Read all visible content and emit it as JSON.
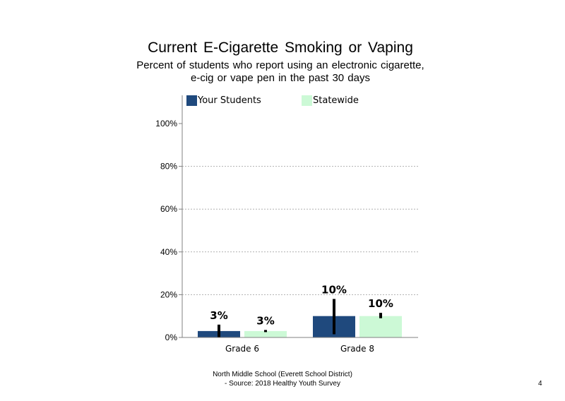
{
  "chart_data": {
    "type": "bar",
    "title": "Current  E-Cigarette  Smoking  or Vaping",
    "subtitle": [
      "Percent of students who report using an electronic cigarette,",
      "e-cig or vape pen in the past 30 days"
    ],
    "categories": [
      "Grade 6",
      "Grade 8"
    ],
    "series": [
      {
        "name": "Your Students",
        "color": "#1f497d",
        "values": [
          3,
          10
        ],
        "labels": [
          "3%",
          "10%"
        ],
        "error_low": [
          0,
          1.5
        ],
        "error_high": [
          6,
          18
        ]
      },
      {
        "name": "Statewide",
        "color": "#ccf9d6",
        "values": [
          3,
          10
        ],
        "labels": [
          "3%",
          "10%"
        ],
        "error_low": [
          2.5,
          9
        ],
        "error_high": [
          3.5,
          11.5
        ]
      }
    ],
    "ylim": [
      0,
      110
    ],
    "yticks": [
      0,
      20,
      40,
      60,
      80,
      100
    ],
    "ytick_labels": [
      "0%",
      "20%",
      "40%",
      "60%",
      "80%",
      "100%"
    ],
    "grid": true,
    "legend": "top"
  },
  "footer": {
    "line1": "North Middle School (Everett School District)",
    "line2": "- Source: 2018 Healthy  Youth Survey"
  },
  "page_number": "4"
}
